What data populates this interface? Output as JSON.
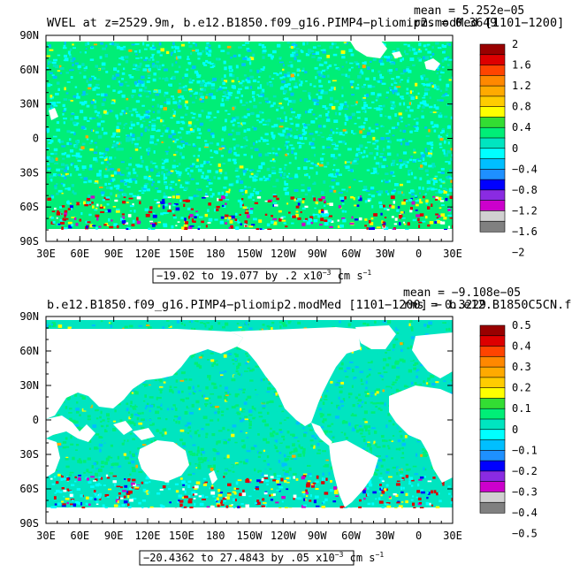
{
  "colors": [
    "#808080",
    "#d0d0d0",
    "#cc00cc",
    "#8a2be2",
    "#0000ff",
    "#1e90ff",
    "#00bfff",
    "#00ffff",
    "#00e5c0",
    "#00ee77",
    "#33dd33",
    "#ffff00",
    "#ffcc00",
    "#ffaa00",
    "#ff8800",
    "#ff4400",
    "#dd0000",
    "#990000"
  ],
  "ocean_color": "#00e5c0",
  "land_color": "#ffffff",
  "chart_data": [
    {
      "type": "heatmap",
      "title": "WVEL at z=2529.9m, b.e12.B1850.f09_g16.PIMP4−pliomip2.modMed [1101−1200]",
      "stats_mean": "mean = 5.252e−05",
      "stats_rms": "rms = 0.3649",
      "range_label": "−19.02 to 19.077 by .2 x10",
      "range_exp": "−3",
      "range_units": " cm s",
      "range_units_exp": "−1",
      "x_ticks": [
        "30E",
        "60E",
        "90E",
        "120E",
        "150E",
        "180",
        "150W",
        "120W",
        "90W",
        "60W",
        "30W",
        "0",
        "30E"
      ],
      "y_ticks": [
        "90N",
        "60N",
        "30N",
        "0",
        "30S",
        "60S",
        "90S"
      ],
      "colorbar_labels": [
        "2",
        "1.6",
        "1.2",
        "0.8",
        "0.4",
        "0",
        "−0.4",
        "−0.8",
        "−1.2",
        "−1.6",
        "−2"
      ]
    },
    {
      "type": "heatmap",
      "title": "b.e12.B1850.f09_g16.PIMP4−pliomip2.modMed [1101−1200] − b.e12.B1850C5CN.f",
      "stats_mean": "mean = −9.108e−05",
      "stats_rms": "rms = 0.3229",
      "range_label": "−20.4362 to 27.4843 by .05 x10",
      "range_exp": "−3",
      "range_units": " cm s",
      "range_units_exp": "−1",
      "x_ticks": [
        "30E",
        "60E",
        "90E",
        "120E",
        "150E",
        "180",
        "150W",
        "120W",
        "90W",
        "60W",
        "30W",
        "0",
        "30E"
      ],
      "y_ticks": [
        "90N",
        "60N",
        "30N",
        "0",
        "30S",
        "60S",
        "90S"
      ],
      "colorbar_labels": [
        "0.5",
        "0.4",
        "0.3",
        "0.2",
        "0.1",
        "0",
        "−0.1",
        "−0.2",
        "−0.3",
        "−0.4",
        "−0.5"
      ]
    }
  ]
}
